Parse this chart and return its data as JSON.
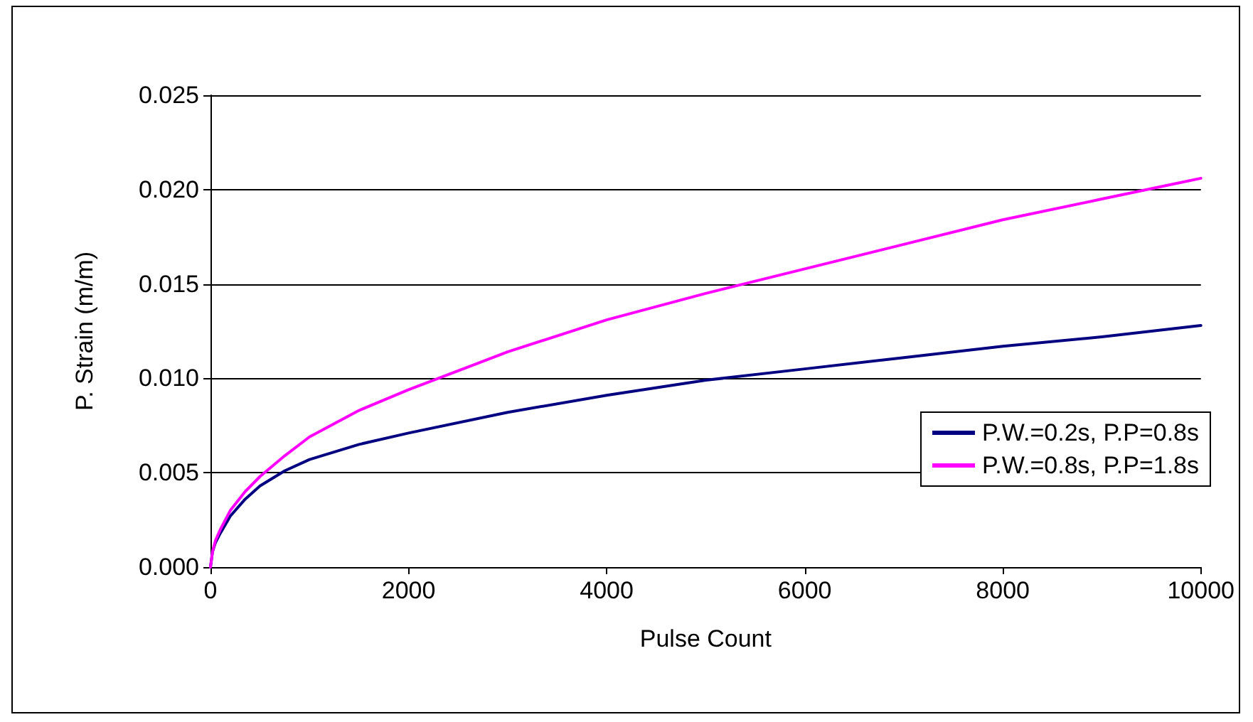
{
  "chart_data": {
    "type": "line",
    "xlabel": "Pulse Count",
    "ylabel": "P. Strain (m/m)",
    "xlim": [
      0,
      10000
    ],
    "xticks": [
      0,
      2000,
      4000,
      6000,
      8000,
      10000
    ],
    "ylim": [
      0,
      0.025
    ],
    "yticks": [
      {
        "value": 0,
        "label": "0.000"
      },
      {
        "value": 0.005,
        "label": "0.005"
      },
      {
        "value": 0.01,
        "label": "0.010"
      },
      {
        "value": 0.015,
        "label": "0.015"
      },
      {
        "value": 0.02,
        "label": "0.020"
      },
      {
        "value": 0.025,
        "label": "0.025"
      }
    ],
    "grid": "y",
    "legend": "right",
    "marker": "none",
    "line_style": "solid",
    "x": [
      0,
      20,
      50,
      100,
      200,
      350,
      500,
      750,
      1000,
      1500,
      2000,
      3000,
      4000,
      5000,
      6000,
      7000,
      8000,
      9000,
      10000
    ],
    "series": [
      {
        "name": "P.W.=0.2s, P.P=0.8s",
        "color": "#000080",
        "values": [
          0,
          0.0008,
          0.0013,
          0.0018,
          0.0027,
          0.0036,
          0.0043,
          0.0051,
          0.0057,
          0.0065,
          0.0071,
          0.0082,
          0.0091,
          0.0099,
          0.0105,
          0.0111,
          0.0117,
          0.0122,
          0.0128
        ]
      },
      {
        "name": "P.W.=0.8s, P.P=1.8s",
        "color": "#ff00ff",
        "values": [
          0,
          0.0008,
          0.0014,
          0.002,
          0.003,
          0.004,
          0.0048,
          0.0059,
          0.0069,
          0.0083,
          0.0094,
          0.0114,
          0.0131,
          0.0145,
          0.0158,
          0.0171,
          0.0184,
          0.0195,
          0.0206
        ]
      }
    ]
  }
}
